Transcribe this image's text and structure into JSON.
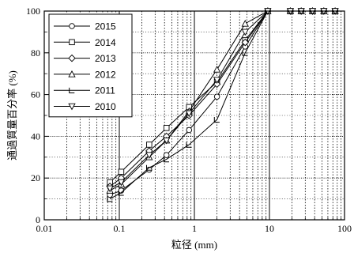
{
  "chart_data": {
    "type": "line",
    "xlabel": "粒径 (mm)",
    "ylabel": "通過質量百分率 (%)",
    "xscale": "log",
    "xlim": [
      0.01,
      100
    ],
    "ylim": [
      0,
      100
    ],
    "grid": true,
    "legend_position": "top-left",
    "x_ticks": [
      {
        "value": 0.01,
        "label": "0.01"
      },
      {
        "value": 0.1,
        "label": "0.1"
      },
      {
        "value": 1,
        "label": "1"
      },
      {
        "value": 10,
        "label": "10"
      },
      {
        "value": 100,
        "label": "100"
      }
    ],
    "y_ticks": [
      {
        "value": 0,
        "label": "0"
      },
      {
        "value": 20,
        "label": "20"
      },
      {
        "value": 40,
        "label": "40"
      },
      {
        "value": 60,
        "label": "60"
      },
      {
        "value": 80,
        "label": "80"
      },
      {
        "value": 100,
        "label": "100"
      }
    ],
    "x": [
      0.075,
      0.106,
      0.25,
      0.425,
      0.85,
      2,
      4.75,
      9.5,
      19,
      26.5,
      37.5,
      53,
      75
    ],
    "series": [
      {
        "name": "2015",
        "marker": "circle",
        "values": [
          12,
          14,
          24,
          31,
          43,
          59,
          83,
          100,
          100,
          100,
          100,
          100,
          100
        ]
      },
      {
        "name": "2014",
        "marker": "square",
        "values": [
          18,
          23,
          36,
          44,
          54,
          66,
          86,
          100,
          100,
          100,
          100,
          100,
          100
        ]
      },
      {
        "name": "2013",
        "marker": "diamond",
        "values": [
          16,
          20,
          33,
          40,
          50,
          65,
          85,
          100,
          100,
          100,
          100,
          100,
          100
        ]
      },
      {
        "name": "2012",
        "marker": "triangle-up",
        "values": [
          14,
          17,
          30,
          38,
          52,
          72,
          94,
          100,
          100,
          100,
          100,
          100,
          100
        ]
      },
      {
        "name": "2011",
        "marker": "corner",
        "values": [
          10,
          13,
          25,
          29,
          36,
          48,
          80,
          100,
          100,
          100,
          100,
          100,
          100
        ]
      },
      {
        "name": "2010",
        "marker": "triangle-down",
        "values": [
          15,
          18,
          31,
          38,
          51,
          67,
          90,
          100,
          100,
          100,
          100,
          100,
          100
        ]
      }
    ]
  }
}
